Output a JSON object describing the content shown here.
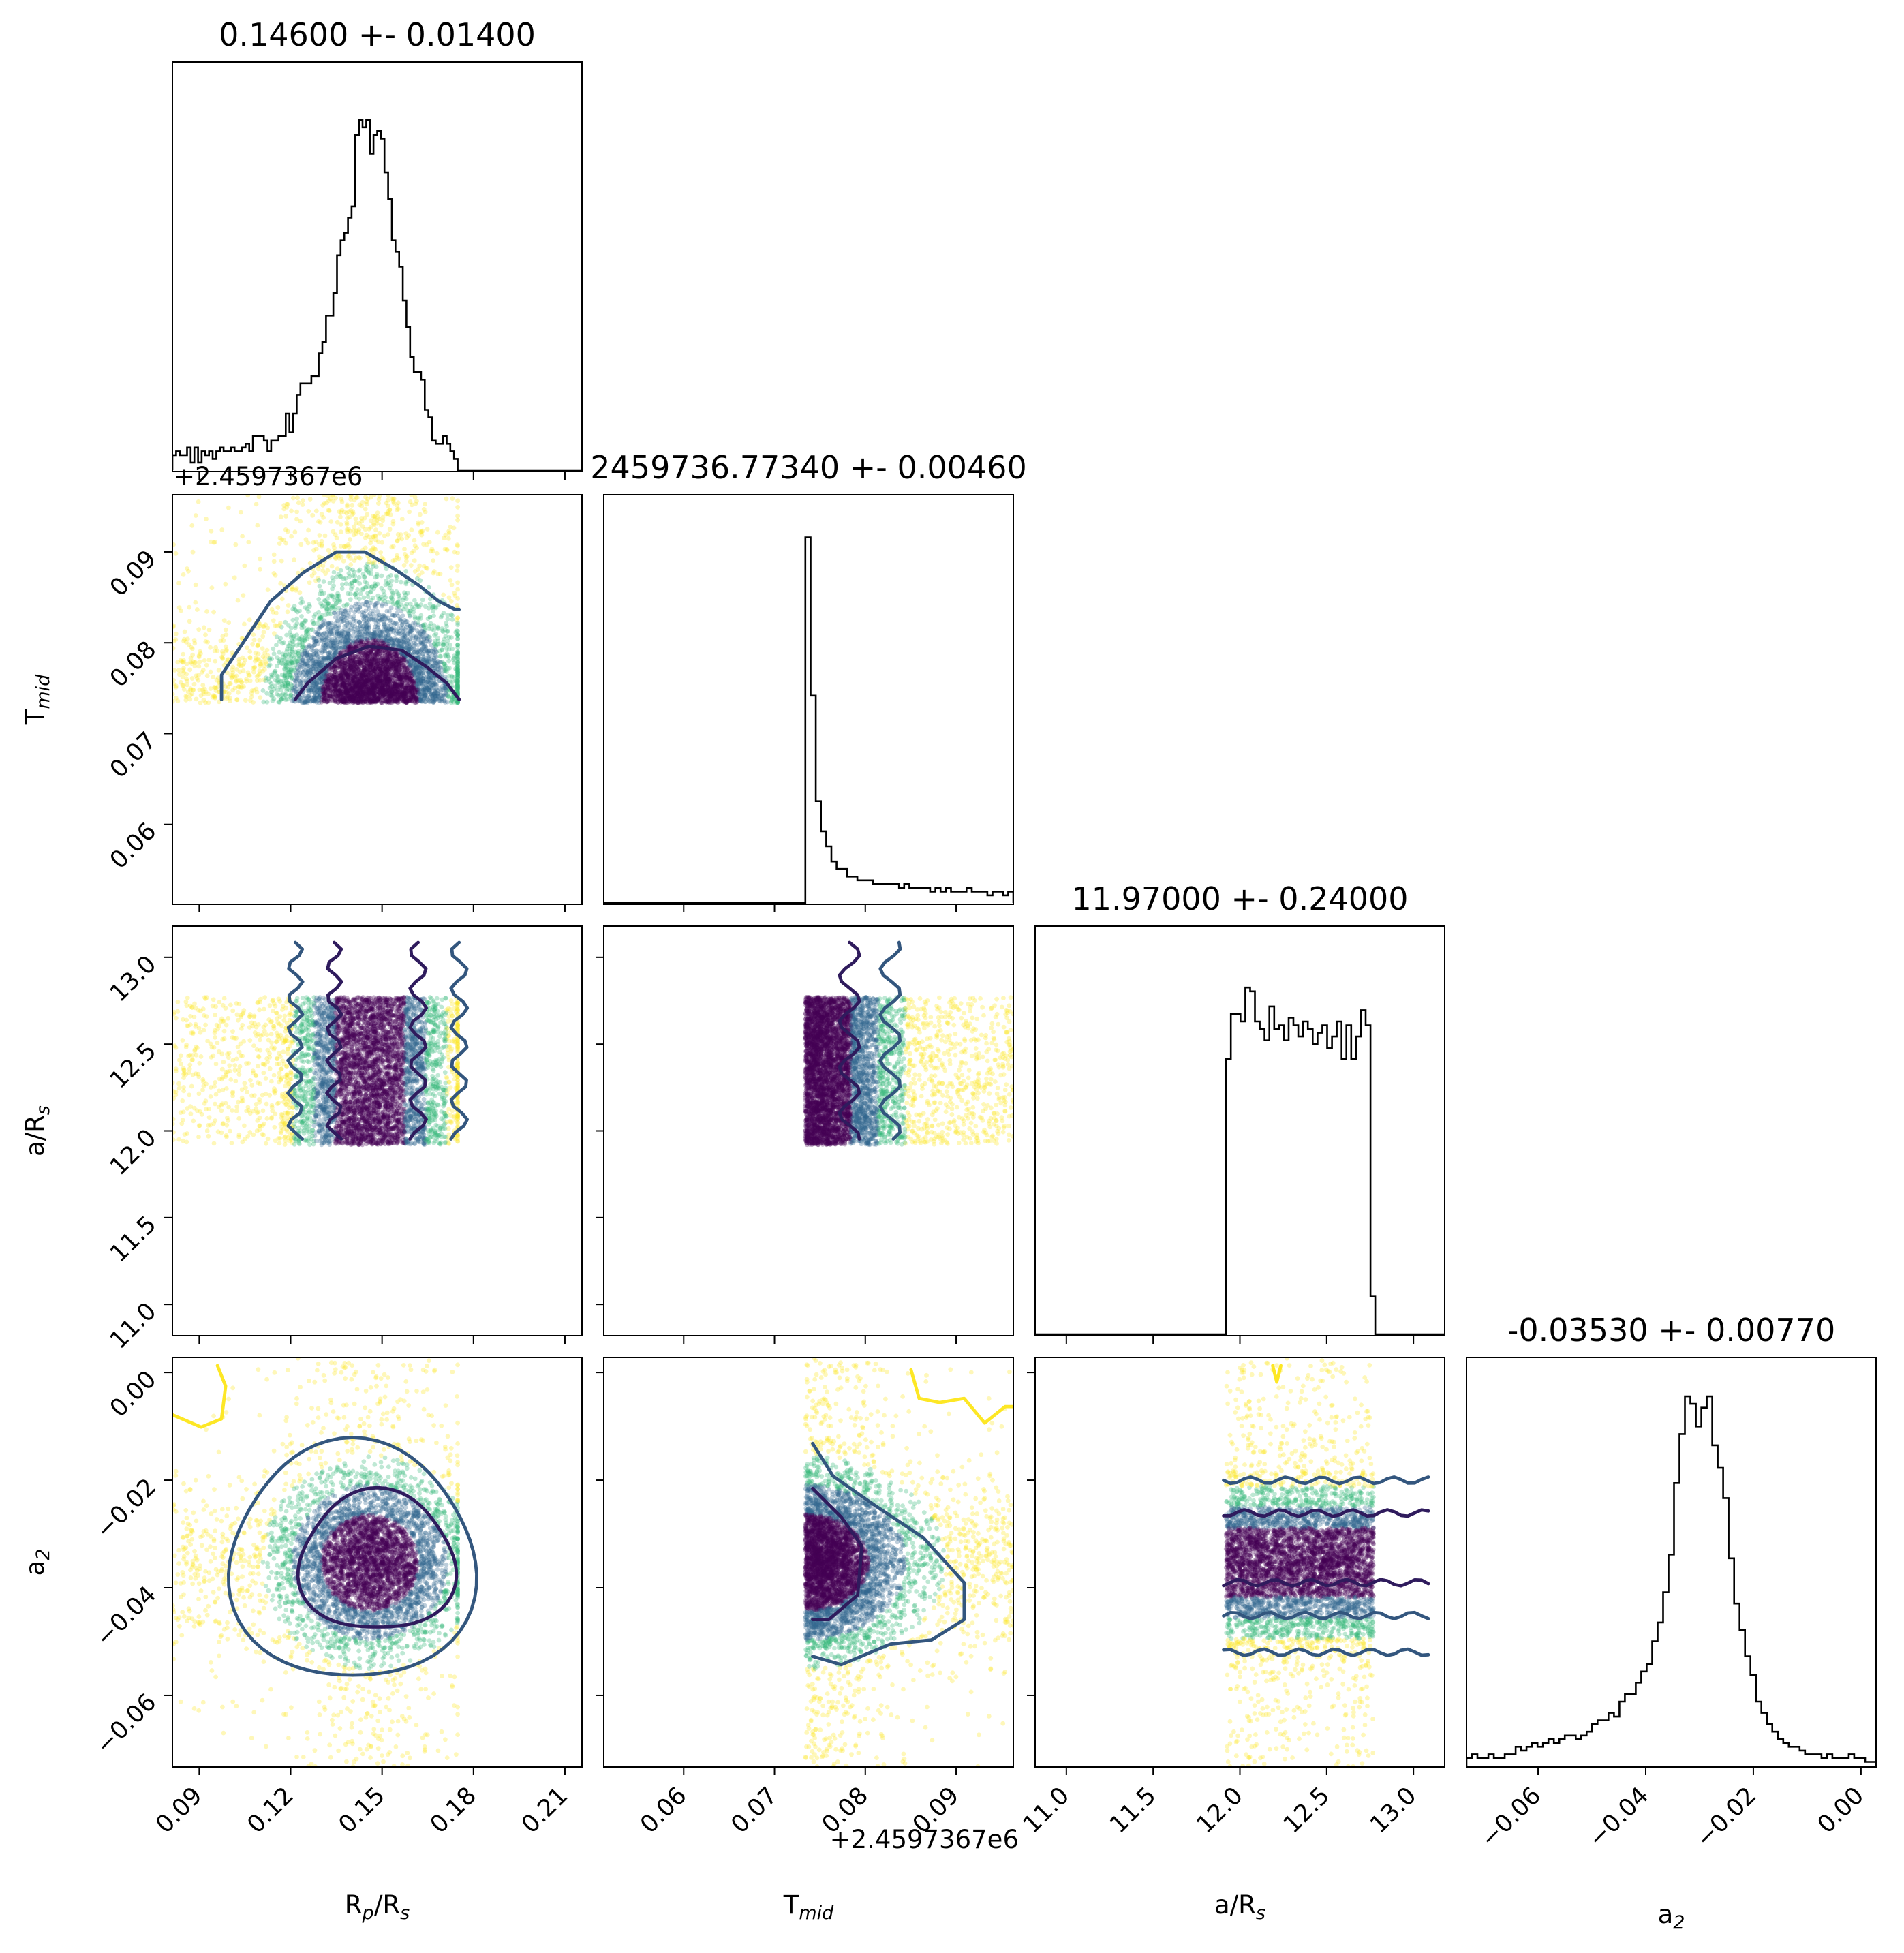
{
  "chart_data": {
    "type": "scatter",
    "subtype": "corner-plot",
    "parameters": [
      {
        "key": "rp",
        "label_main": "R",
        "label_sub1": "p",
        "label_mid": "/R",
        "label_sub2": "s",
        "title": "0.14600 +- 0.01400",
        "range": [
          0.0812,
          0.2156
        ],
        "ticks": [
          {
            "v": 0.09,
            "t": "0.09"
          },
          {
            "v": 0.12,
            "t": "0.12"
          },
          {
            "v": 0.15,
            "t": "0.15"
          },
          {
            "v": 0.18,
            "t": "0.18"
          },
          {
            "v": 0.21,
            "t": "0.21"
          }
        ],
        "histogram": {
          "bins": [
            0.0812,
            0.1748
          ],
          "values": [
            0.04,
            0.05,
            0.04,
            0.04,
            0.06,
            0.02,
            0.06,
            0.02,
            0.05,
            0.04,
            0.05,
            0.03,
            0.05,
            0.06,
            0.05,
            0.05,
            0.06,
            0.05,
            0.05,
            0.06,
            0.07,
            0.05,
            0.09,
            0.09,
            0.09,
            0.08,
            0.05,
            0.08,
            0.08,
            0.09,
            0.09,
            0.15,
            0.1,
            0.15,
            0.2,
            0.23,
            0.23,
            0.23,
            0.25,
            0.25,
            0.31,
            0.34,
            0.41,
            0.41,
            0.47,
            0.57,
            0.61,
            0.63,
            0.67,
            0.7,
            0.89,
            0.93,
            0.91,
            0.93,
            0.84,
            0.89,
            0.9,
            0.88,
            0.79,
            0.72,
            0.61,
            0.58,
            0.54,
            0.45,
            0.38,
            0.3,
            0.26,
            0.26,
            0.24,
            0.16,
            0.14,
            0.08,
            0.07,
            0.07,
            0.09,
            0.07,
            0.05,
            0.03
          ]
        }
      },
      {
        "key": "tmid",
        "label_main": "T",
        "label_sub1": "mid",
        "label_mid": "",
        "label_sub2": "",
        "title": "2459736.77340 +- 0.00460",
        "offset_text": "+2.4597367e6",
        "range": [
          0.0512,
          0.0963
        ],
        "ticks": [
          {
            "v": 0.06,
            "t": "0.06"
          },
          {
            "v": 0.07,
            "t": "0.07"
          },
          {
            "v": 0.08,
            "t": "0.08"
          },
          {
            "v": 0.09,
            "t": "0.09"
          }
        ],
        "histogram": {
          "bins": [
            0.0734,
            0.0963
          ],
          "values": [
            0.97,
            0.55,
            0.27,
            0.19,
            0.15,
            0.11,
            0.09,
            0.09,
            0.07,
            0.07,
            0.06,
            0.06,
            0.06,
            0.05,
            0.05,
            0.05,
            0.05,
            0.05,
            0.04,
            0.05,
            0.04,
            0.04,
            0.04,
            0.04,
            0.03,
            0.04,
            0.03,
            0.04,
            0.03,
            0.03,
            0.03,
            0.04,
            0.03,
            0.03,
            0.03,
            0.02,
            0.03,
            0.03,
            0.02,
            0.03
          ]
        }
      },
      {
        "key": "ars",
        "label_main": "a",
        "label_sub1": "",
        "label_mid": "/R",
        "label_sub2": "s",
        "title": "11.97000 +- 0.24000",
        "range": [
          10.82,
          13.18
        ],
        "ticks": [
          {
            "v": 11.0,
            "t": "11.0"
          },
          {
            "v": 11.5,
            "t": "11.5"
          },
          {
            "v": 12.0,
            "t": "12.0"
          },
          {
            "v": 12.5,
            "t": "12.5"
          },
          {
            "v": 13.0,
            "t": "13.0"
          }
        ],
        "histogram": {
          "bins": [
            11.92,
            12.78
          ],
          "values": [
            0.73,
            0.85,
            0.85,
            0.83,
            0.92,
            0.91,
            0.83,
            0.81,
            0.78,
            0.87,
            0.81,
            0.82,
            0.78,
            0.84,
            0.82,
            0.79,
            0.83,
            0.81,
            0.77,
            0.8,
            0.82,
            0.76,
            0.79,
            0.83,
            0.73,
            0.82,
            0.73,
            0.79,
            0.86,
            0.82,
            0.1
          ]
        }
      },
      {
        "key": "a2",
        "label_main": "a",
        "label_sub1": "2",
        "label_mid": "",
        "label_sub2": "",
        "title": "-0.03530 +- 0.00770",
        "range": [
          -0.0733,
          0.0028
        ],
        "ticks": [
          {
            "v": -0.06,
            "t": "−0.06"
          },
          {
            "v": -0.04,
            "t": "−0.04"
          },
          {
            "v": -0.02,
            "t": "−0.02"
          },
          {
            "v": 0.0,
            "t": "0.00"
          }
        ],
        "histogram": {
          "bins": [
            -0.0733,
            0.0028
          ],
          "values": [
            0.02,
            0.03,
            0.02,
            0.02,
            0.03,
            0.02,
            0.02,
            0.03,
            0.03,
            0.05,
            0.04,
            0.05,
            0.06,
            0.05,
            0.06,
            0.07,
            0.06,
            0.07,
            0.08,
            0.08,
            0.07,
            0.08,
            0.09,
            0.11,
            0.12,
            0.12,
            0.14,
            0.13,
            0.17,
            0.19,
            0.19,
            0.22,
            0.25,
            0.27,
            0.33,
            0.38,
            0.46,
            0.56,
            0.75,
            0.88,
            0.98,
            0.96,
            0.9,
            0.95,
            0.98,
            0.85,
            0.79,
            0.71,
            0.55,
            0.43,
            0.36,
            0.29,
            0.24,
            0.17,
            0.14,
            0.11,
            0.09,
            0.07,
            0.06,
            0.05,
            0.05,
            0.04,
            0.03,
            0.03,
            0.03,
            0.02,
            0.03,
            0.02,
            0.02,
            0.02,
            0.03,
            0.02,
            0.02,
            0.01,
            0.01
          ]
        }
      }
    ],
    "scatter_colormap": [
      "#440154",
      "#31688e",
      "#35b779",
      "#fde725"
    ],
    "contour_colors": [
      "#2f1b5d",
      "#33567e",
      "#fde725"
    ]
  }
}
